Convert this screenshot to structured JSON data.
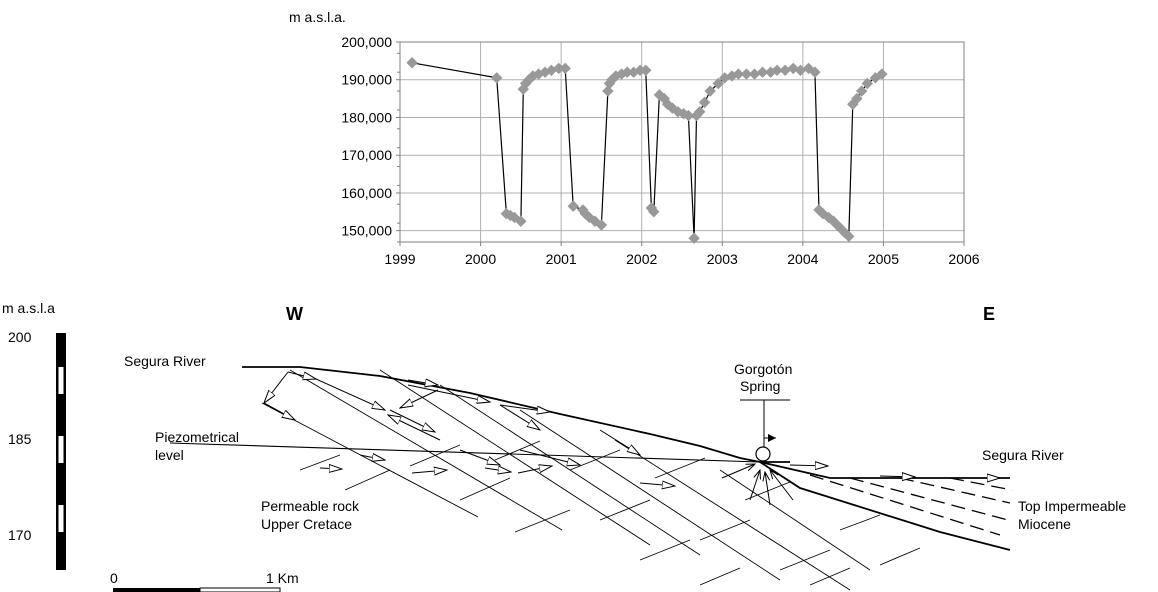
{
  "chart_data": {
    "type": "scatter",
    "ylabel": "m a.s.l.a.",
    "yticks": [
      "200,000",
      "190,000",
      "180,000",
      "170,000",
      "160,000",
      "150,000"
    ],
    "ylim": [
      147,
      200
    ],
    "xticks": [
      "1999",
      "2000",
      "2001",
      "2002",
      "2003",
      "2004",
      "2005",
      "2006"
    ],
    "xlim": [
      1999,
      2006
    ],
    "grid": true,
    "marker": "diamond",
    "marker_color": "#999999",
    "line_color": "#000000",
    "series": [
      {
        "x": [
          1999.15,
          2000.2,
          2000.32,
          2000.37,
          2000.42,
          2000.5,
          2000.53,
          2000.56,
          2000.6,
          2000.65,
          2000.72,
          2000.8,
          2000.88,
          2000.97,
          2001.05,
          2001.15,
          2001.27,
          2001.3,
          2001.35,
          2001.42,
          2001.5,
          2001.58,
          2001.6,
          2001.63,
          2001.68,
          2001.75,
          2001.82,
          2001.9,
          2001.98,
          2002.05,
          2002.12,
          2002.15,
          2002.22,
          2002.28,
          2002.32,
          2002.38,
          2002.45,
          2002.52,
          2002.58,
          2002.65,
          2002.68,
          2002.72,
          2002.78,
          2002.85,
          2002.95,
          2003.03,
          2003.12,
          2003.2,
          2003.3,
          2003.4,
          2003.5,
          2003.6,
          2003.68,
          2003.78,
          2003.88,
          2003.97,
          2004.07,
          2004.15,
          2004.2,
          2004.25,
          2004.32,
          2004.38,
          2004.45,
          2004.52,
          2004.57,
          2004.62,
          2004.67,
          2004.73,
          2004.8,
          2004.9,
          2004.98
        ],
        "y": [
          194.5,
          190.5,
          154.5,
          154,
          153.5,
          152.5,
          187.5,
          189,
          190,
          191,
          191.5,
          192,
          192.5,
          193,
          193,
          156.5,
          155.5,
          154.5,
          153.5,
          152.5,
          151.5,
          187,
          189,
          190,
          191,
          191.5,
          192,
          192,
          192.5,
          192.5,
          156,
          155,
          186,
          185,
          183.5,
          182.5,
          181.5,
          181,
          180.5,
          148,
          180.5,
          181.5,
          184,
          187,
          189,
          190.5,
          191,
          191.5,
          191.5,
          191.5,
          192,
          192,
          192.5,
          192.5,
          193,
          192.5,
          193,
          192,
          155.5,
          154.5,
          153.5,
          152.5,
          151,
          149.5,
          148.5,
          183.5,
          185,
          187,
          189,
          190.5,
          191.5
        ]
      }
    ]
  },
  "section": {
    "ylabel": "m a.s.l.a",
    "scale_ticks": [
      "200",
      "185",
      "170"
    ],
    "west_label": "W",
    "east_label": "E",
    "segura_river_west": "Segura River",
    "segura_river_east": "Segura River",
    "piezometric_line1": "Piezometrical",
    "piezometric_line2": "level",
    "spring_line1": "Gorgotón",
    "spring_line2": "Spring",
    "permeable_line1": "Permeable rock",
    "permeable_line2": "Upper Cretace",
    "impermeable_line1": "Top Impermeable",
    "impermeable_line2": "Miocene",
    "scalebar_start": "0",
    "scalebar_end": "1 Km"
  }
}
